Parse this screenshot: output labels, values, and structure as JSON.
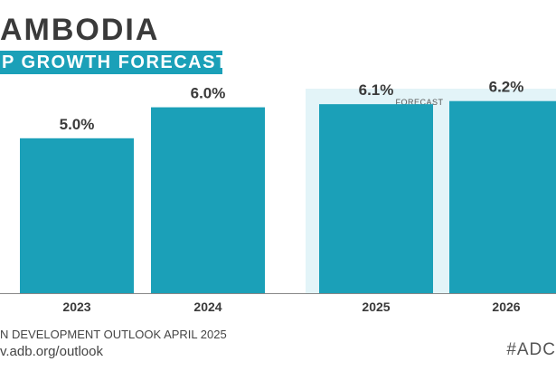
{
  "header": {
    "title": "AMBODIA",
    "subtitle": "P GROWTH FORECAST"
  },
  "chart_data": {
    "type": "bar",
    "categories": [
      "2023",
      "2024",
      "2025",
      "2026"
    ],
    "values": [
      5.0,
      6.0,
      6.1,
      6.2
    ],
    "data_labels": [
      "5.0%",
      "6.0%",
      "6.1%",
      "6.2%"
    ],
    "forecast_categories": [
      "2025",
      "2026"
    ],
    "forecast_label": "FORECAST",
    "ylim": [
      0,
      7
    ],
    "grid": false,
    "bar_color": "#1ba0b8",
    "forecast_band_color": "#e3f4f8"
  },
  "footer": {
    "source_label": "N DEVELOPMENT OUTLOOK APRIL 2025",
    "source_url": "v.adb.org/outlook",
    "hashtag": "#ADC"
  }
}
